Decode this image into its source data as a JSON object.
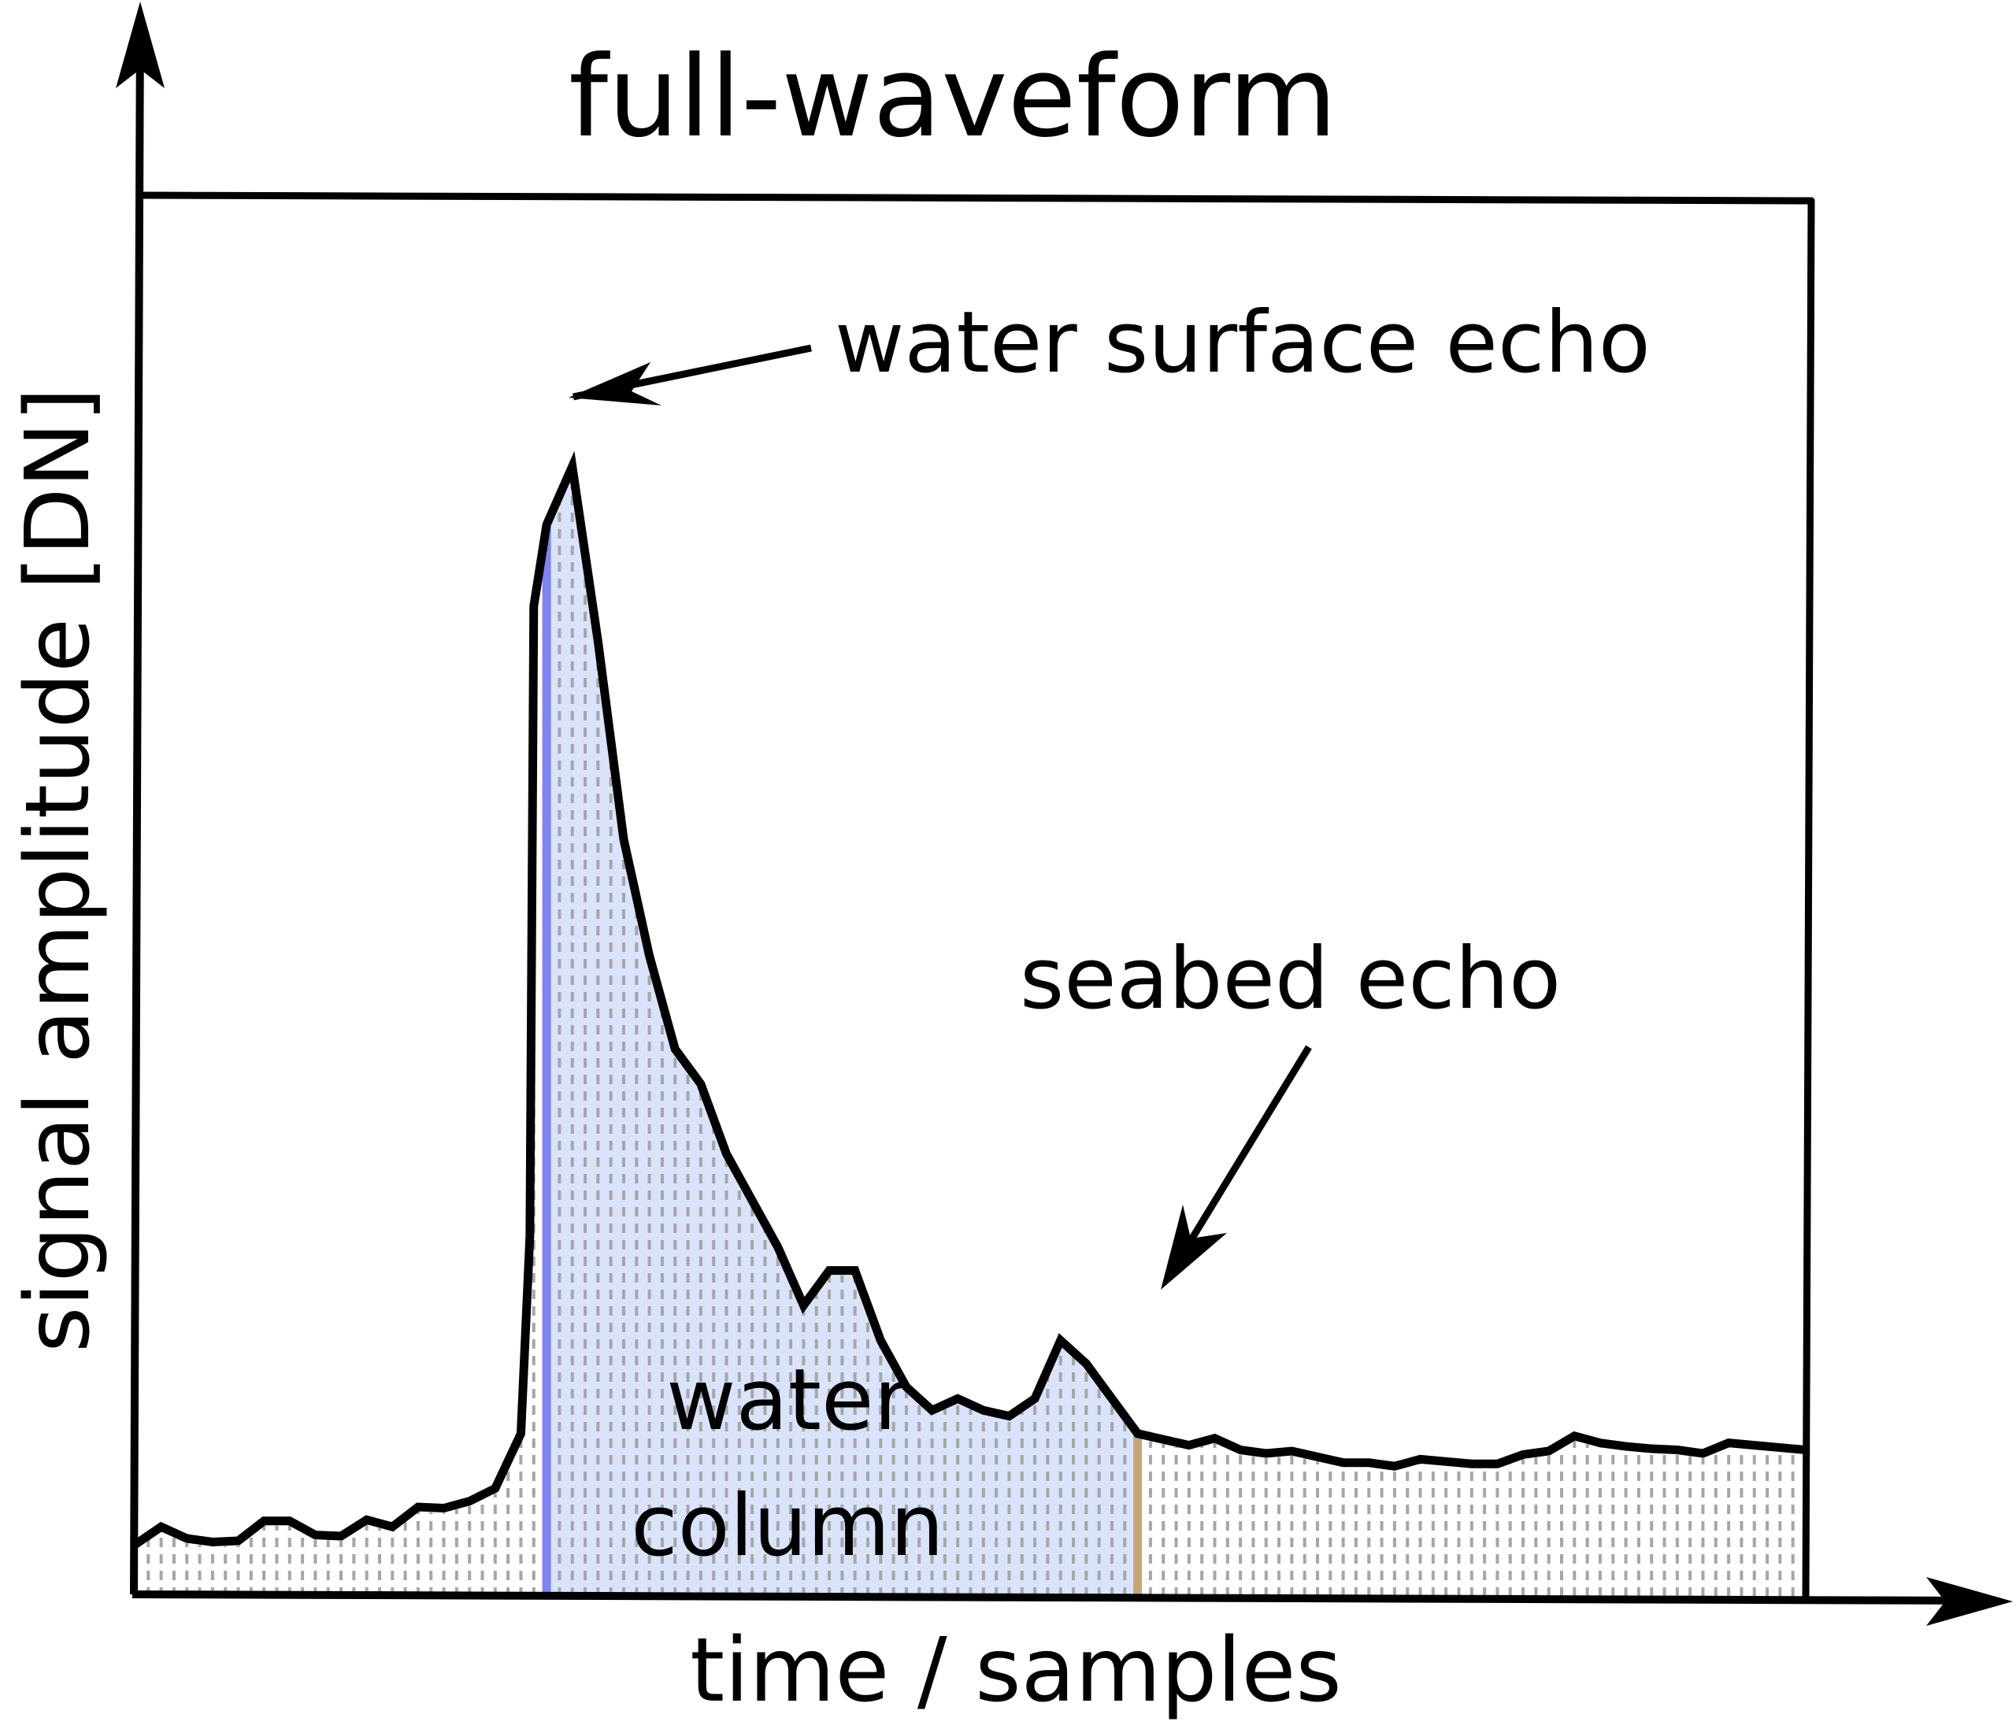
{
  "title": "full-waveform",
  "x_axis_label": "time / samples",
  "y_axis_label": "signal amplitude [DN]",
  "annotations": {
    "water_surface_echo": "water surface echo",
    "seabed_echo": "seabed echo",
    "water_column_line1": "water",
    "water_column_line2": "column"
  },
  "colors": {
    "waveform_line": "#000000",
    "water_column_fill": "#d9e4fb",
    "water_surface_marker": "#7f83f4",
    "seabed_marker": "#c8a477",
    "sample_lines": "#a6a6a6"
  },
  "chart_data": {
    "type": "area",
    "title": "full-waveform",
    "xlabel": "time / samples",
    "ylabel": "signal amplitude [DN]",
    "x": [
      0,
      2,
      4,
      6,
      8,
      10,
      12,
      14,
      16,
      18,
      20,
      22,
      24,
      26,
      28,
      30,
      30.7,
      31,
      32,
      34,
      36,
      38,
      40,
      42,
      44,
      46,
      48,
      50,
      52,
      54,
      56,
      58,
      60,
      62,
      64,
      66,
      68,
      70,
      72,
      74,
      76,
      78,
      80,
      82,
      84,
      86,
      88,
      90,
      92,
      94,
      96,
      98,
      100,
      102,
      104,
      106,
      108,
      110,
      112,
      114,
      116,
      118,
      120,
      122,
      124,
      126,
      128,
      130
    ],
    "y": [
      4.5,
      6,
      5,
      4.7,
      4.8,
      6.5,
      6.5,
      5.3,
      5.2,
      6.6,
      6,
      7.7,
      7.6,
      8.2,
      9.3,
      14,
      31,
      85,
      92,
      97,
      82,
      65,
      55,
      47,
      44,
      38,
      34,
      30,
      25,
      28,
      28,
      22,
      18,
      16,
      17,
      16,
      15.5,
      17,
      22,
      20,
      17,
      14,
      13.5,
      13,
      13.6,
      12.6,
      12.3,
      12.5,
      12,
      11.5,
      11.5,
      11.2,
      11.8,
      11.6,
      11.4,
      11.4,
      12.2,
      12.5,
      13.8,
      13.2,
      12.9,
      12.7,
      12.6,
      12.3,
      13.2,
      13,
      12.8,
      12.6
    ],
    "water_surface_echo_x": 32,
    "seabed_echo_x": 78,
    "water_column_range": [
      32,
      78
    ],
    "ylim": [
      0,
      110
    ],
    "grid": false,
    "legend": "none"
  }
}
